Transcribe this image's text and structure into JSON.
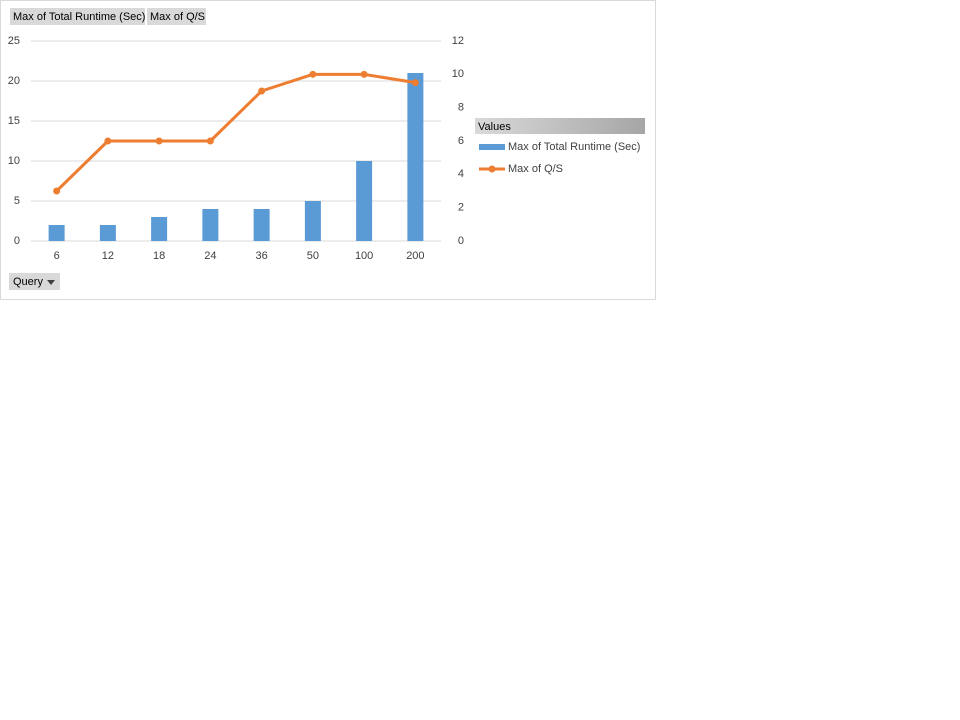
{
  "chart_data": {
    "type": "bar-line",
    "categories": [
      "6",
      "12",
      "18",
      "24",
      "36",
      "50",
      "100",
      "200"
    ],
    "series": [
      {
        "name": "Max of Total Runtime (Sec)",
        "type": "bar",
        "color": "#5b9bd5",
        "values": [
          2,
          2,
          3,
          4,
          4,
          5,
          10,
          21
        ]
      },
      {
        "name": "Max of Q/S",
        "type": "line",
        "axis": "y2",
        "color": "#ed7d31",
        "values": [
          3,
          6,
          6,
          6,
          9,
          10,
          10,
          9.5
        ]
      }
    ],
    "ylim": [
      0,
      25
    ],
    "yticks": [
      0,
      5,
      10,
      15,
      20,
      25
    ],
    "y2lim": [
      0,
      12
    ],
    "y2ticks": [
      0,
      2,
      4,
      6,
      8,
      10,
      12
    ],
    "grid": true,
    "legend_title": "Values",
    "axis_field": "Query"
  }
}
